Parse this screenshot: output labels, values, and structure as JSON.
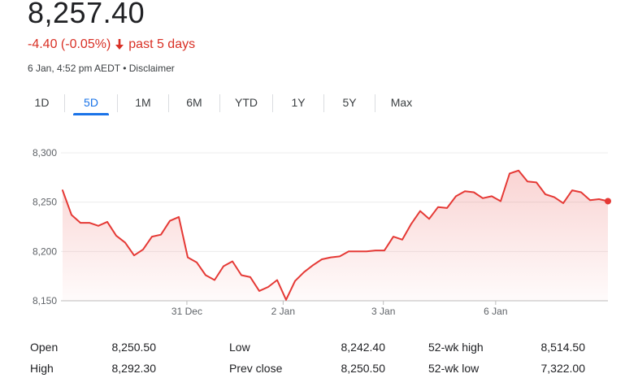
{
  "quote": {
    "price": "8,257.40",
    "change": "-4.40 (-0.05%)",
    "change_direction": "down",
    "period_label": "past 5 days",
    "timestamp": "6 Jan, 4:52 pm AEDT",
    "separator": "•",
    "disclaimer": "Disclaimer"
  },
  "colors": {
    "negative": "#d93025",
    "accent": "#1a73e8",
    "line": "#e53935"
  },
  "tabs": [
    {
      "label": "1D",
      "active": false
    },
    {
      "label": "5D",
      "active": true
    },
    {
      "label": "1M",
      "active": false
    },
    {
      "label": "6M",
      "active": false
    },
    {
      "label": "YTD",
      "active": false
    },
    {
      "label": "1Y",
      "active": false
    },
    {
      "label": "5Y",
      "active": false
    },
    {
      "label": "Max",
      "active": false
    }
  ],
  "chart_data": {
    "type": "area",
    "y_ticks": [
      "8,300",
      "8,250",
      "8,200",
      "8,150"
    ],
    "y_tick_values": [
      8300,
      8250,
      8200,
      8150
    ],
    "ylim": [
      8150,
      8300
    ],
    "x_ticks": [
      "31 Dec",
      "2 Jan",
      "3 Jan",
      "6 Jan"
    ],
    "x_tick_index": [
      15.5,
      27.5,
      40,
      54
    ],
    "x_count": 69,
    "grid": true,
    "series": [
      {
        "values": [
          8262,
          8237,
          8229,
          8229,
          8226,
          8230,
          8216,
          8209,
          8196,
          8202,
          8215,
          8217,
          8231,
          8235,
          8194,
          8189,
          8176,
          8171,
          8185,
          8190,
          8176,
          8174,
          8160,
          8164,
          8171,
          8151,
          8170,
          8179,
          8186,
          8192,
          8194,
          8195,
          8200,
          8200,
          8200,
          8201,
          8201,
          8215,
          8212,
          8228,
          8241,
          8233,
          8245,
          8244,
          8256,
          8261,
          8260,
          8254,
          8256,
          8251,
          8279,
          8282,
          8271,
          8270,
          8258,
          8255,
          8249,
          8262,
          8260,
          8252,
          8253,
          8251
        ],
        "end_marker": 8251
      }
    ]
  },
  "stats": [
    {
      "label": "Open",
      "value": "8,250.50"
    },
    {
      "label": "High",
      "value": "8,292.30"
    },
    {
      "label": "Low",
      "value": "8,242.40"
    },
    {
      "label": "Prev close",
      "value": "8,250.50"
    },
    {
      "label": "52-wk high",
      "value": "8,514.50"
    },
    {
      "label": "52-wk low",
      "value": "7,322.00"
    }
  ]
}
